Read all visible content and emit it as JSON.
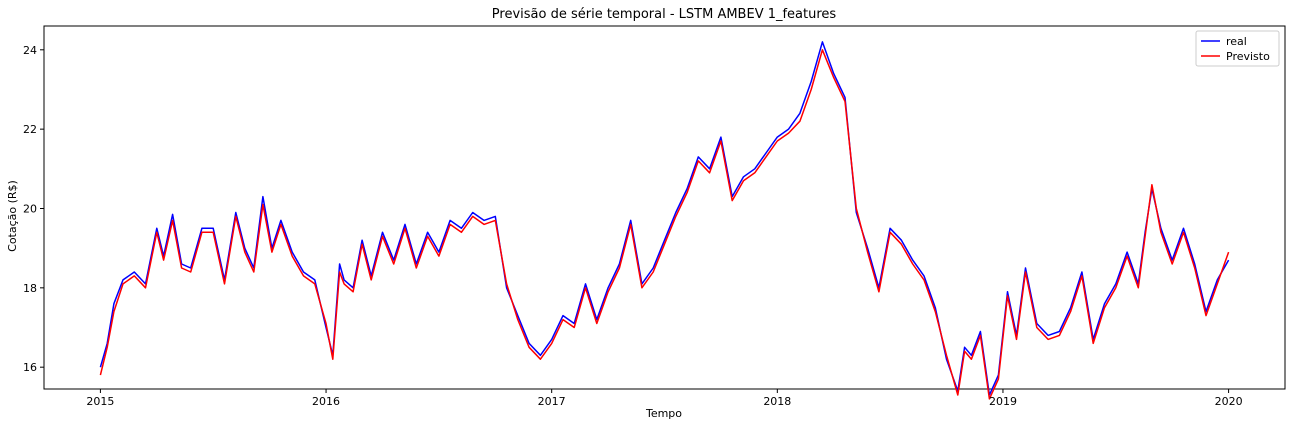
{
  "chart_data": {
    "type": "line",
    "title": "Previsão de série temporal - LSTM AMBEV 1_features",
    "xlabel": "Tempo",
    "ylabel": "Cotação (R$)",
    "xlim": [
      2014.75,
      2020.25
    ],
    "ylim": [
      15.45,
      24.6
    ],
    "xticks": [
      2015,
      2016,
      2017,
      2018,
      2019,
      2020
    ],
    "xtick_labels": [
      "2015",
      "2016",
      "2017",
      "2018",
      "2019",
      "2020"
    ],
    "yticks": [
      16,
      18,
      20,
      22,
      24
    ],
    "ytick_labels": [
      "16",
      "18",
      "20",
      "22",
      "24"
    ],
    "grid": false,
    "legend": "top-right",
    "series": [
      {
        "name": "real",
        "color": "#0000ff",
        "x": [
          2015.0,
          2015.03,
          2015.06,
          2015.1,
          2015.15,
          2015.2,
          2015.25,
          2015.28,
          2015.32,
          2015.36,
          2015.4,
          2015.45,
          2015.5,
          2015.55,
          2015.6,
          2015.64,
          2015.68,
          2015.72,
          2015.76,
          2015.8,
          2015.85,
          2015.9,
          2015.95,
          2016.0,
          2016.03,
          2016.06,
          2016.08,
          2016.12,
          2016.16,
          2016.2,
          2016.25,
          2016.3,
          2016.35,
          2016.4,
          2016.45,
          2016.5,
          2016.55,
          2016.6,
          2016.65,
          2016.7,
          2016.75,
          2016.8,
          2016.85,
          2016.9,
          2016.95,
          2017.0,
          2017.05,
          2017.1,
          2017.15,
          2017.2,
          2017.25,
          2017.3,
          2017.35,
          2017.4,
          2017.45,
          2017.5,
          2017.55,
          2017.6,
          2017.65,
          2017.7,
          2017.75,
          2017.8,
          2017.85,
          2017.9,
          2017.95,
          2018.0,
          2018.05,
          2018.1,
          2018.15,
          2018.2,
          2018.25,
          2018.3,
          2018.35,
          2018.4,
          2018.45,
          2018.5,
          2018.55,
          2018.6,
          2018.65,
          2018.7,
          2018.75,
          2018.8,
          2018.83,
          2018.86,
          2018.9,
          2018.94,
          2018.98,
          2019.02,
          2019.06,
          2019.1,
          2019.15,
          2019.2,
          2019.25,
          2019.3,
          2019.35,
          2019.4,
          2019.45,
          2019.5,
          2019.55,
          2019.6,
          2019.63,
          2019.66,
          2019.7,
          2019.75,
          2019.8,
          2019.85,
          2019.9,
          2019.95,
          2020.0
        ],
        "values": [
          16.0,
          16.6,
          17.6,
          18.2,
          18.4,
          18.1,
          19.5,
          18.8,
          19.85,
          18.6,
          18.5,
          19.5,
          19.5,
          18.2,
          19.9,
          19.0,
          18.5,
          20.3,
          19.0,
          19.7,
          18.9,
          18.4,
          18.2,
          17.0,
          16.3,
          18.6,
          18.2,
          18.0,
          19.2,
          18.3,
          19.4,
          18.7,
          19.6,
          18.6,
          19.4,
          18.9,
          19.7,
          19.5,
          19.9,
          19.7,
          19.8,
          18.0,
          17.3,
          16.6,
          16.3,
          16.7,
          17.3,
          17.1,
          18.1,
          17.2,
          18.0,
          18.6,
          19.7,
          18.1,
          18.5,
          19.2,
          19.9,
          20.5,
          21.3,
          21.0,
          21.8,
          20.3,
          20.8,
          21.0,
          21.4,
          21.8,
          22.0,
          22.4,
          23.2,
          24.2,
          23.4,
          22.8,
          19.9,
          19.0,
          18.0,
          19.5,
          19.2,
          18.7,
          18.3,
          17.5,
          16.2,
          15.4,
          16.5,
          16.3,
          16.9,
          15.3,
          15.8,
          17.9,
          16.8,
          18.5,
          17.1,
          16.8,
          16.9,
          17.5,
          18.4,
          16.7,
          17.6,
          18.1,
          18.9,
          18.1,
          19.4,
          20.5,
          19.5,
          18.7,
          19.5,
          18.6,
          17.4,
          18.2,
          18.7
        ]
      },
      {
        "name": "Previsto",
        "color": "#ff0000",
        "x": [
          2015.0,
          2015.03,
          2015.06,
          2015.1,
          2015.15,
          2015.2,
          2015.25,
          2015.28,
          2015.32,
          2015.36,
          2015.4,
          2015.45,
          2015.5,
          2015.55,
          2015.6,
          2015.64,
          2015.68,
          2015.72,
          2015.76,
          2015.8,
          2015.85,
          2015.9,
          2015.95,
          2016.0,
          2016.03,
          2016.06,
          2016.08,
          2016.12,
          2016.16,
          2016.2,
          2016.25,
          2016.3,
          2016.35,
          2016.4,
          2016.45,
          2016.5,
          2016.55,
          2016.6,
          2016.65,
          2016.7,
          2016.75,
          2016.8,
          2016.85,
          2016.9,
          2016.95,
          2017.0,
          2017.05,
          2017.1,
          2017.15,
          2017.2,
          2017.25,
          2017.3,
          2017.35,
          2017.4,
          2017.45,
          2017.5,
          2017.55,
          2017.6,
          2017.65,
          2017.7,
          2017.75,
          2017.8,
          2017.85,
          2017.9,
          2017.95,
          2018.0,
          2018.05,
          2018.1,
          2018.15,
          2018.2,
          2018.25,
          2018.3,
          2018.35,
          2018.4,
          2018.45,
          2018.5,
          2018.55,
          2018.6,
          2018.65,
          2018.7,
          2018.75,
          2018.8,
          2018.83,
          2018.86,
          2018.9,
          2018.94,
          2018.98,
          2019.02,
          2019.06,
          2019.1,
          2019.15,
          2019.2,
          2019.25,
          2019.3,
          2019.35,
          2019.4,
          2019.45,
          2019.5,
          2019.55,
          2019.6,
          2019.63,
          2019.66,
          2019.7,
          2019.75,
          2019.8,
          2019.85,
          2019.9,
          2019.95,
          2020.0
        ],
        "values": [
          15.8,
          16.5,
          17.4,
          18.1,
          18.3,
          18.0,
          19.4,
          18.7,
          19.7,
          18.5,
          18.4,
          19.4,
          19.4,
          18.1,
          19.8,
          18.9,
          18.4,
          20.1,
          18.9,
          19.6,
          18.8,
          18.3,
          18.1,
          17.1,
          16.2,
          18.4,
          18.1,
          17.9,
          19.1,
          18.2,
          19.3,
          18.6,
          19.5,
          18.5,
          19.3,
          18.8,
          19.6,
          19.4,
          19.8,
          19.6,
          19.7,
          18.1,
          17.2,
          16.5,
          16.2,
          16.6,
          17.2,
          17.0,
          18.0,
          17.1,
          17.9,
          18.5,
          19.6,
          18.0,
          18.4,
          19.1,
          19.8,
          20.4,
          21.2,
          20.9,
          21.7,
          20.2,
          20.7,
          20.9,
          21.3,
          21.7,
          21.9,
          22.2,
          23.0,
          24.0,
          23.3,
          22.7,
          20.0,
          18.9,
          17.9,
          19.4,
          19.1,
          18.6,
          18.2,
          17.4,
          16.3,
          15.3,
          16.4,
          16.2,
          16.8,
          15.2,
          15.7,
          17.8,
          16.7,
          18.4,
          17.0,
          16.7,
          16.8,
          17.4,
          18.3,
          16.6,
          17.5,
          18.0,
          18.8,
          18.0,
          19.3,
          20.6,
          19.4,
          18.6,
          19.4,
          18.5,
          17.3,
          18.1,
          18.9
        ]
      }
    ]
  }
}
